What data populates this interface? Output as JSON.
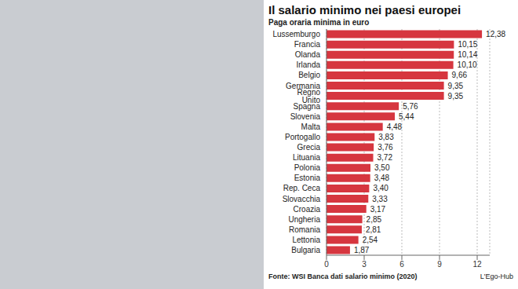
{
  "chart_data": {
    "type": "bar",
    "title": "Il salario minimo nei paesi europei",
    "subtitle": "Paga oraria minima in euro",
    "annotations": [
      "Fonte: WSI Banca dati salario minimo (2020)",
      "L'Ego-Hub"
    ],
    "orientation": "horizontal",
    "categories": [
      "Lussemburgo",
      "Francia",
      "Olanda",
      "Irlanda",
      "Belgio",
      "Germania",
      "Regno Unito",
      "Spagna",
      "Slovenia",
      "Malta",
      "Portogallo",
      "Grecia",
      "Lituania",
      "Polonia",
      "Estonia",
      "Rep. Ceca",
      "Slovacchia",
      "Croazia",
      "Ungheria",
      "Romania",
      "Lettonia",
      "Bulgaria"
    ],
    "values": [
      12.38,
      10.15,
      10.14,
      10.1,
      9.66,
      9.35,
      9.35,
      5.76,
      5.44,
      4.48,
      3.83,
      3.76,
      3.72,
      3.5,
      3.48,
      3.4,
      3.33,
      3.17,
      2.85,
      2.81,
      2.54,
      1.87
    ],
    "value_labels": [
      "12,38",
      "10,15",
      "10,14",
      "10,10",
      "9,66",
      "9,35",
      "9,35",
      "5,76",
      "5,44",
      "4,48",
      "3,83",
      "3,76",
      "3,72",
      "3,50",
      "3,48",
      "3,40",
      "3,33",
      "3,17",
      "2,85",
      "2,81",
      "2,54",
      "1,87"
    ],
    "color": "#d6363f",
    "xlim": [
      0,
      13
    ],
    "xticks": [
      0,
      3,
      6,
      9,
      12
    ],
    "grid": true,
    "data_labels": true
  }
}
